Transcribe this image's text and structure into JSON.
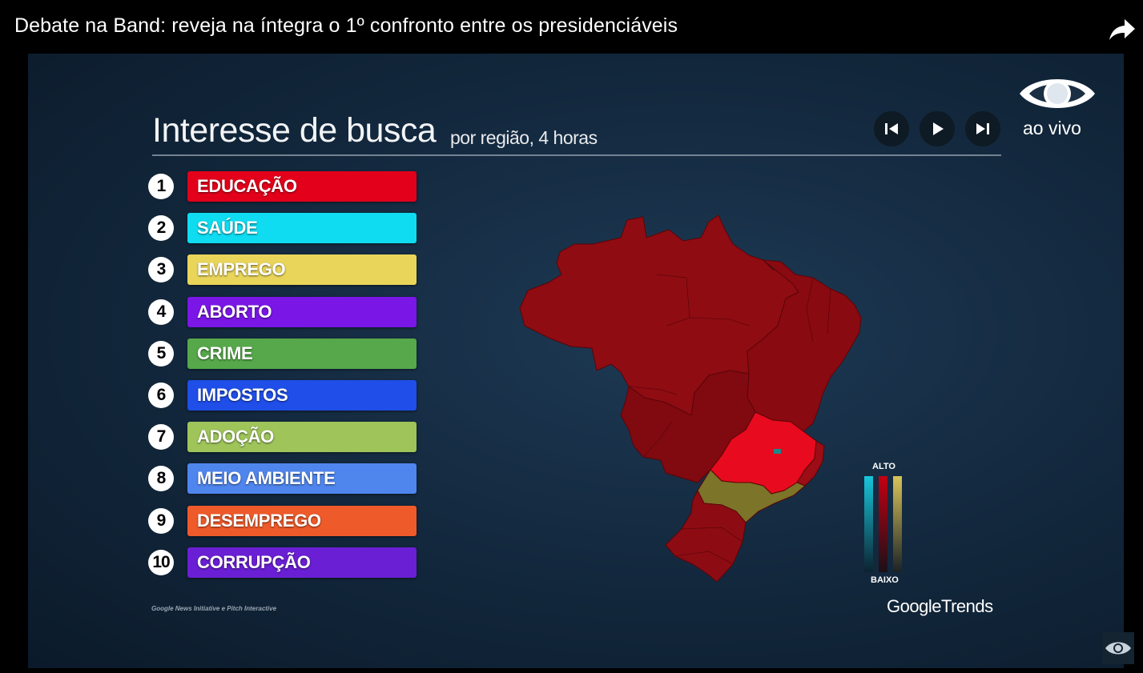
{
  "video": {
    "title": "Debate na Band: reveja na íntegra o 1º confronto entre os presidenciáveis"
  },
  "icons": {
    "share": "share-arrow-icon",
    "prev": "skip-previous-icon",
    "play": "play-icon",
    "next": "skip-next-icon",
    "logo": "band-eye-logo",
    "watermark": "band-eye-watermark-icon"
  },
  "broadcast": {
    "live_label": "ao vivo"
  },
  "graphic": {
    "title": "Interesse de busca",
    "subtitle": "por região, 4 horas",
    "credit": "Google News Initiative e Pitch Interactive",
    "brand_google": "Google",
    "brand_trends": "Trends"
  },
  "topics": [
    {
      "rank": "1",
      "label": "EDUCAÇÃO",
      "color": "#e2001a"
    },
    {
      "rank": "2",
      "label": "SAÚDE",
      "color": "#0fdcf0"
    },
    {
      "rank": "3",
      "label": "EMPREGO",
      "color": "#e9d55a"
    },
    {
      "rank": "4",
      "label": "ABORTO",
      "color": "#7a16e6"
    },
    {
      "rank": "5",
      "label": "CRIME",
      "color": "#56a84a"
    },
    {
      "rank": "6",
      "label": "IMPOSTOS",
      "color": "#1f4ee8"
    },
    {
      "rank": "7",
      "label": "ADOÇÃO",
      "color": "#9ec45a"
    },
    {
      "rank": "8",
      "label": "MEIO AMBIENTE",
      "color": "#4f86ee"
    },
    {
      "rank": "9",
      "label": "DESEMPREGO",
      "color": "#ef5a2a"
    },
    {
      "rank": "10",
      "label": "CORRUPÇÃO",
      "color": "#6a1fd4"
    }
  ],
  "legend": {
    "high": "ALTO",
    "low": "BAIXO",
    "colors": [
      "#18c6da",
      "#c20012",
      "#d8c45a"
    ]
  },
  "map_colors": {
    "default_region": "#8c0b12",
    "highlight_region": "#e80a1e",
    "alt_region": "#7c7428"
  }
}
